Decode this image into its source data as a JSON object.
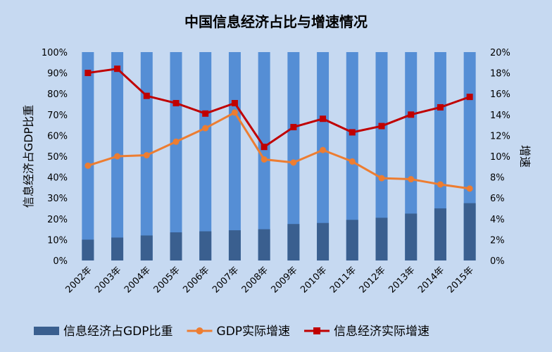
{
  "chart_data": {
    "type": "bar",
    "title": "中国信息经济占比与增速情况",
    "categories": [
      "2002年",
      "2003年",
      "2004年",
      "2005年",
      "2006年",
      "2007年",
      "2008年",
      "2009年",
      "2010年",
      "2011年",
      "2012年",
      "2013年",
      "2014年",
      "2015年"
    ],
    "series": [
      {
        "name": "信息经济占GDP比重",
        "type": "bar",
        "axis": "left",
        "color": "#3a5f8f",
        "values": [
          10.0,
          11.0,
          12.0,
          13.5,
          14.0,
          14.5,
          15.0,
          17.5,
          18.0,
          19.5,
          20.5,
          22.5,
          25.0,
          27.5
        ]
      },
      {
        "name": "GDP实际增速",
        "type": "line",
        "axis": "right",
        "color": "#ed7d31",
        "marker": "circle",
        "values": [
          9.1,
          10.0,
          10.1,
          11.4,
          12.7,
          14.2,
          9.7,
          9.4,
          10.6,
          9.5,
          7.9,
          7.8,
          7.3,
          6.9
        ]
      },
      {
        "name": "信息经济实际增速",
        "type": "line",
        "axis": "right",
        "color": "#c00000",
        "marker": "square",
        "values": [
          18.0,
          18.4,
          15.8,
          15.1,
          14.1,
          15.1,
          10.9,
          12.8,
          13.6,
          12.3,
          12.9,
          14.0,
          14.7,
          15.7
        ]
      }
    ],
    "background_bar": {
      "value": 100,
      "color": "#558ed5"
    },
    "ylabel": "信息经济占GDP比重",
    "ylim": [
      0,
      100
    ],
    "y_ticks": [
      "0%",
      "10%",
      "20%",
      "30%",
      "40%",
      "50%",
      "60%",
      "70%",
      "80%",
      "90%",
      "100%"
    ],
    "y2label": "增速",
    "y2lim": [
      0,
      20
    ],
    "y2_ticks": [
      "0%",
      "2%",
      "4%",
      "6%",
      "8%",
      "10%",
      "12%",
      "14%",
      "16%",
      "18%",
      "20%"
    ],
    "grid": false,
    "legend_position": "bottom",
    "background_color": "#c6d9f1"
  }
}
